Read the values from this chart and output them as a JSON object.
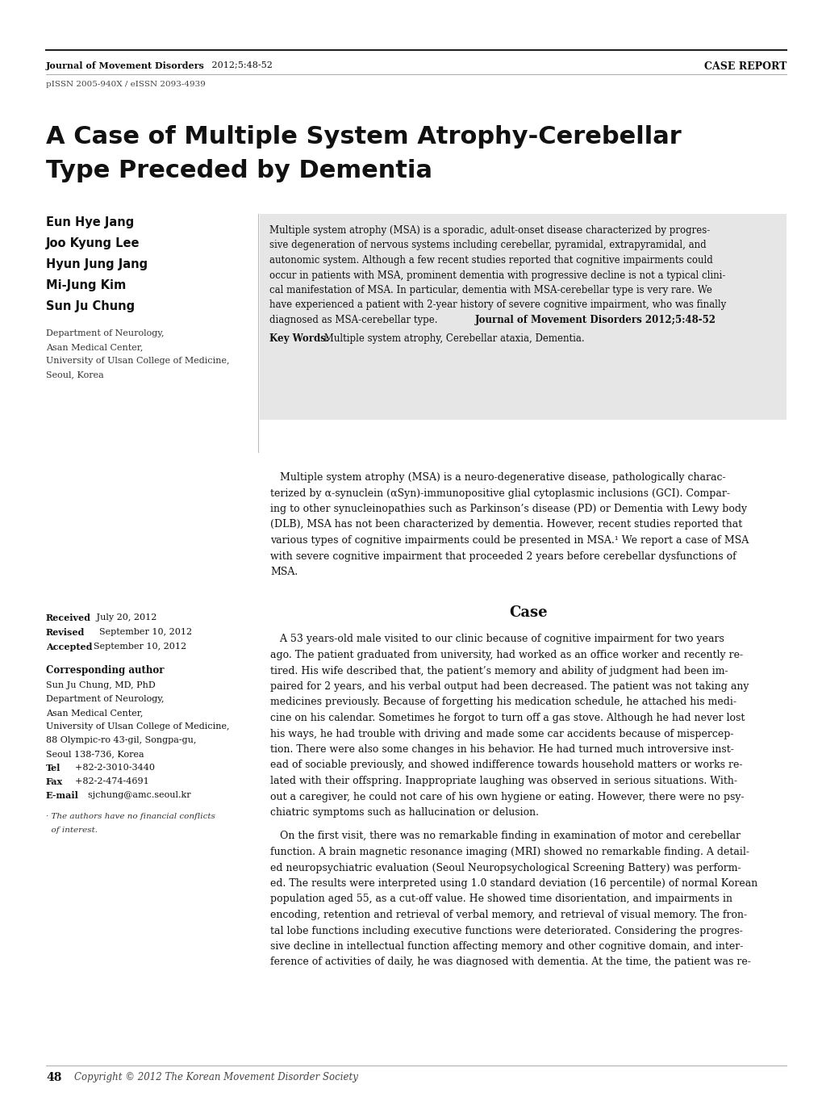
{
  "page_width": 10.2,
  "page_height": 13.59,
  "bg_color": "#ffffff",
  "journal_name": "Journal of Movement Disorders",
  "journal_citation": " 2012;5:48-52",
  "case_report_label": "CASE REPORT",
  "issn_line": "pISSN 2005-940X / eISSN 2093-4939",
  "title_line1": "A Case of Multiple System Atrophy-Cerebellar",
  "title_line2": "Type Preceded by Dementia",
  "authors": [
    "Eun Hye Jang",
    "Joo Kyung Lee",
    "Hyun Jung Jang",
    "Mi-Jung Kim",
    "Sun Ju Chung"
  ],
  "affiliation_lines": [
    "Department of Neurology,",
    "Asan Medical Center,",
    "University of Ulsan College of Medicine,",
    "Seoul, Korea"
  ],
  "received_bold": "Received",
  "received_rest": "   July 20, 2012",
  "revised_bold": "Revised",
  "revised_rest": "    September 10, 2012",
  "accepted_bold": "Accepted",
  "accepted_rest": "  September 10, 2012",
  "corresponding_label": "Corresponding author",
  "corr_lines": [
    "Sun Ju Chung, MD, PhD",
    "Department of Neurology,",
    "Asan Medical Center,",
    "University of Ulsan College of Medicine,",
    "88 Olympic-ro 43-gil, Songpa-gu,",
    "Seoul 138-736, Korea"
  ],
  "tel_bold": "Tel",
  "tel_rest": "    +82-2-3010-3440",
  "fax_bold": "Fax",
  "fax_rest": "    +82-2-474-4691",
  "email_bold": "E-mail",
  "email_rest": "    sjchung@amc.seoul.kr",
  "conflict_text": "· The authors have no financial conflicts\n  of interest.",
  "abstract_bg": "#e6e6e6",
  "abstract_lines": [
    "Multiple system atrophy (MSA) is a sporadic, adult-onset disease characterized by progres-",
    "sive degeneration of nervous systems including cerebellar, pyramidal, extrapyramidal, and",
    "autonomic system. Although a few recent studies reported that cognitive impairments could",
    "occur in patients with MSA, prominent dementia with progressive decline is not a typical clini-",
    "cal manifestation of MSA. In particular, dementia with MSA-cerebellar type is very rare. We",
    "have experienced a patient with 2-year history of severe cognitive impairment, who was finally",
    "diagnosed as MSA-cerebellar type."
  ],
  "abstract_citation": "Journal of Movement Disorders 2012;5:48-52",
  "keywords_label": "Key Words:",
  "keywords_text": " Multiple system atrophy, Cerebellar ataxia, Dementia.",
  "intro_lines": [
    "   Multiple system atrophy (MSA) is a neuro-degenerative disease, pathologically charac-",
    "terized by α-synuclein (αSyn)-immunopositive glial cytoplasmic inclusions (GCI). Compar-",
    "ing to other synucleinopathies such as Parkinson’s disease (PD) or Dementia with Lewy body",
    "(DLB), MSA has not been characterized by dementia. However, recent studies reported that",
    "various types of cognitive impairments could be presented in MSA.¹ We report a case of MSA",
    "with severe cognitive impairment that proceeded 2 years before cerebellar dysfunctions of",
    "MSA."
  ],
  "case_heading": "Case",
  "case_lines": [
    "   A 53 years-old male visited to our clinic because of cognitive impairment for two years",
    "ago. The patient graduated from university, had worked as an office worker and recently re-",
    "tired. His wife described that, the patient’s memory and ability of judgment had been im-",
    "paired for 2 years, and his verbal output had been decreased. The patient was not taking any",
    "medicines previously. Because of forgetting his medication schedule, he attached his medi-",
    "cine on his calendar. Sometimes he forgot to turn off a gas stove. Although he had never lost",
    "his ways, he had trouble with driving and made some car accidents because of mispercep-",
    "tion. There were also some changes in his behavior. He had turned much introversive inst-",
    "ead of sociable previously, and showed indifference towards household matters or works re-",
    "lated with their offspring. Inappropriate laughing was observed in serious situations. With-",
    "out a caregiver, he could not care of his own hygiene or eating. However, there were no psy-",
    "chiatric symptoms such as hallucination or delusion."
  ],
  "case2_lines": [
    "   On the first visit, there was no remarkable finding in examination of motor and cerebellar",
    "function. A brain magnetic resonance imaging (MRI) showed no remarkable finding. A detail-",
    "ed neuropsychiatric evaluation (Seoul Neuropsychological Screening Battery) was perform-",
    "ed. The results were interpreted using 1.0 standard deviation (16 percentile) of normal Korean",
    "population aged 55, as a cut-off value. He showed time disorientation, and impairments in",
    "encoding, retention and retrieval of verbal memory, and retrieval of visual memory. The fron-",
    "tal lobe functions including executive functions were deteriorated. Considering the progres-",
    "sive decline in intellectual function affecting memory and other cognitive domain, and inter-",
    "ference of activities of daily, he was diagnosed with dementia. At the time, the patient was re-"
  ],
  "page_number": "48",
  "copyright_text": "Copyright © 2012 The Korean Movement Disorder Society"
}
